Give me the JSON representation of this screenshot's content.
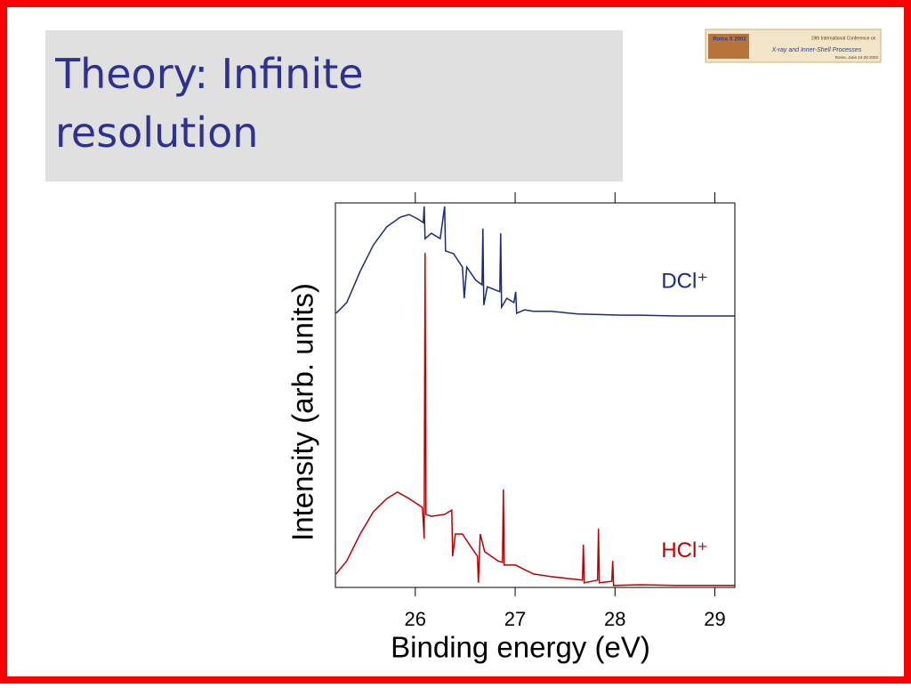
{
  "slide": {
    "title": "Theory: Infinite resolution",
    "logo": {
      "name": "Roma X 2002",
      "conference": "19th International Conference on",
      "topic": "X-ray and Inner-Shell Processes",
      "place": "Rome, June 24-28 2002"
    }
  },
  "chart_data": {
    "type": "line",
    "xlabel": "Binding energy (eV)",
    "ylabel": "Intensity (arb. units)",
    "xlim": [
      25.2,
      29.2
    ],
    "xticks": [
      26,
      27,
      28,
      29
    ],
    "ylim": [
      0,
      100
    ],
    "series": [
      {
        "name": "DCl⁺",
        "color": "#1a2a7a",
        "x": [
          25.207,
          25.314,
          25.448,
          25.581,
          25.715,
          25.849,
          25.938,
          26.027,
          26.08,
          26.089,
          26.098,
          26.16,
          26.249,
          26.294,
          26.303,
          26.383,
          26.472,
          26.49,
          26.516,
          26.606,
          26.668,
          26.677,
          26.686,
          26.721,
          26.846,
          26.855,
          26.864,
          26.917,
          26.988,
          27.006,
          27.015,
          27.095,
          27.184,
          27.362,
          27.63,
          28.075,
          28.253,
          28.609,
          28.965,
          29.197
        ],
        "values": [
          71.3,
          74.1,
          82.2,
          89.1,
          93.8,
          96.3,
          97.0,
          95.8,
          94.9,
          99.1,
          90.7,
          92.1,
          90.7,
          99.1,
          87.5,
          86.8,
          83.3,
          75.2,
          83.3,
          79.9,
          78.7,
          93.3,
          73.4,
          78.2,
          76.9,
          92.1,
          72.9,
          75.2,
          74.1,
          76.9,
          71.3,
          72.2,
          71.8,
          71.8,
          71.1,
          70.8,
          70.8,
          70.6,
          70.6,
          70.6
        ]
      },
      {
        "name": "HCl⁺",
        "color": "#c00000",
        "x": [
          25.207,
          25.314,
          25.448,
          25.581,
          25.715,
          25.822,
          25.938,
          26.071,
          26.089,
          26.098,
          26.107,
          26.16,
          26.294,
          26.365,
          26.374,
          26.401,
          26.472,
          26.561,
          26.623,
          26.632,
          26.65,
          26.695,
          26.828,
          26.873,
          26.882,
          26.89,
          27.006,
          27.095,
          27.184,
          27.362,
          27.541,
          27.674,
          27.683,
          27.692,
          27.825,
          27.834,
          27.843,
          27.968,
          27.977,
          27.986,
          28.253,
          28.609,
          29.197
        ],
        "values": [
          3.5,
          6.9,
          13.9,
          19.7,
          23.1,
          24.8,
          23.1,
          20.8,
          12.7,
          87.0,
          19.0,
          18.5,
          19.0,
          20.1,
          8.1,
          13.9,
          13.9,
          10.4,
          8.1,
          1.2,
          13.9,
          9.3,
          6.9,
          6.5,
          25.5,
          5.8,
          5.8,
          4.6,
          3.5,
          2.8,
          2.3,
          1.9,
          11.1,
          1.2,
          1.9,
          15.3,
          1.2,
          1.6,
          6.9,
          0.5,
          0.7,
          0.5,
          0.5
        ]
      }
    ]
  }
}
